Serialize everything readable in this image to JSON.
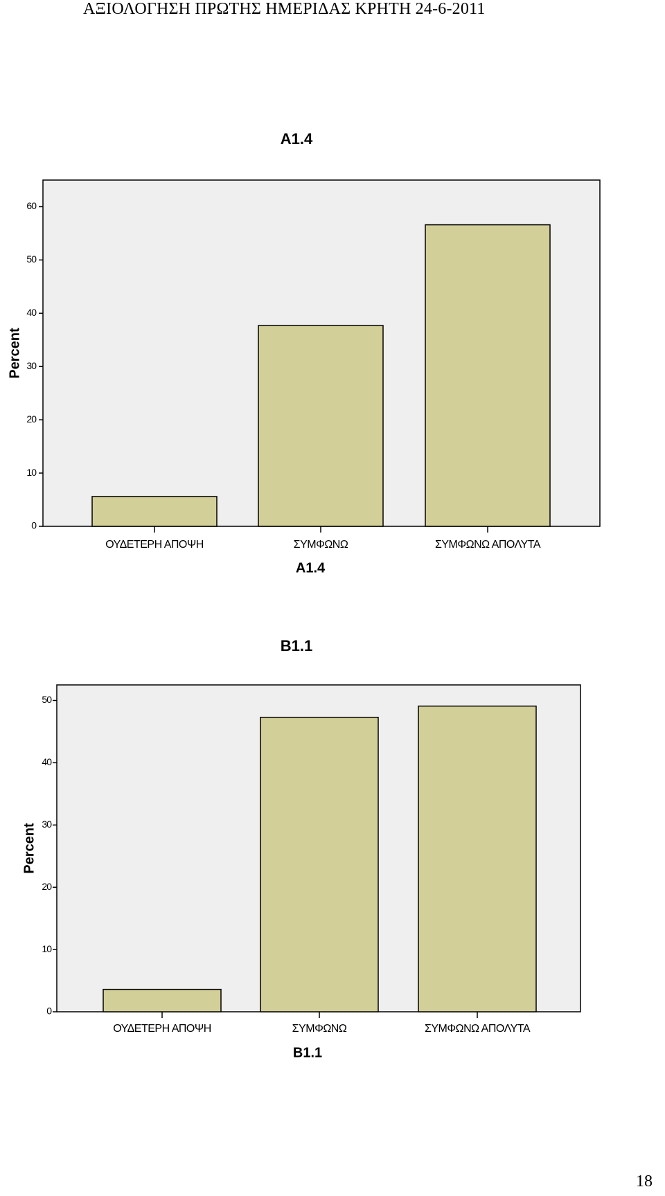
{
  "page": {
    "header": "ΑΞΙΟΛΟΓΗΣΗ ΠΡΩΤΗΣ ΗΜΕΡΙΔΑΣ ΚΡΗΤΗ 24-6-2011",
    "page_number": "18"
  },
  "colors": {
    "plot_background": "#efefef",
    "bar_fill": "#d3cf98",
    "stroke": "#000000"
  },
  "chart_data": [
    {
      "type": "bar",
      "title": "A1.4",
      "xlabel": "A1.4",
      "ylabel": "Percent",
      "categories": [
        "ΟΥΔΕΤΕΡΗ ΑΠΟΨΗ",
        "ΣΥΜΦΩΝΩ",
        "ΣΥΜΦΩΝΩ ΑΠΟΛΥΤΑ"
      ],
      "values": [
        5.6,
        37.7,
        56.6
      ],
      "ylim": [
        0,
        65
      ],
      "yticks": [
        0,
        10,
        20,
        30,
        40,
        50,
        60
      ],
      "grid": false,
      "legend": "none"
    },
    {
      "type": "bar",
      "title": "B1.1",
      "xlabel": "B1.1",
      "ylabel": "Percent",
      "categories": [
        "ΟΥΔΕΤΕΡΗ ΑΠΟΨΗ",
        "ΣΥΜΦΩΝΩ",
        "ΣΥΜΦΩΝΩ ΑΠΟΛΥΤΑ"
      ],
      "values": [
        3.6,
        47.3,
        49.1
      ],
      "ylim": [
        0,
        52.5
      ],
      "yticks": [
        0,
        10,
        20,
        30,
        40,
        50
      ],
      "grid": false,
      "legend": "none"
    }
  ]
}
